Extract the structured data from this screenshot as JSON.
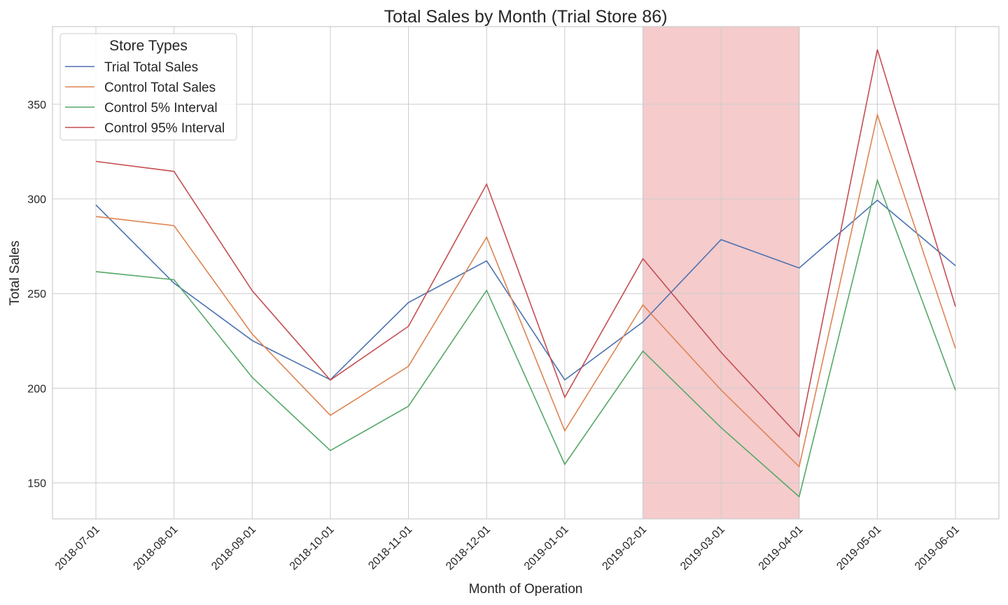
{
  "chart_data": {
    "type": "line",
    "title": "Total Sales by Month (Trial Store 86)",
    "xlabel": "Month of Operation",
    "ylabel": "Total Sales",
    "categories": [
      "2018-07-01",
      "2018-08-01",
      "2018-09-01",
      "2018-10-01",
      "2018-11-01",
      "2018-12-01",
      "2019-01-01",
      "2019-02-01",
      "2019-03-01",
      "2019-04-01",
      "2019-05-01",
      "2019-06-01"
    ],
    "ylim": [
      131,
      391
    ],
    "yticks": [
      150,
      200,
      250,
      300,
      350
    ],
    "grid": true,
    "legend": {
      "title": "Store Types",
      "placement": "top-left"
    },
    "highlight": {
      "from": "2019-02-01",
      "to": "2019-04-01",
      "color": "#f4c5c6"
    },
    "series": [
      {
        "name": "Trial Total Sales",
        "color": "#4c72b0",
        "values": [
          296.8,
          255.5,
          225.2,
          204.5,
          245.3,
          267.3,
          204.4,
          235.0,
          278.5,
          263.5,
          299.3,
          264.7
        ]
      },
      {
        "name": "Control Total Sales",
        "color": "#dd8452",
        "values": [
          290.7,
          285.9,
          228.6,
          185.7,
          211.6,
          279.8,
          177.5,
          244.0,
          199.1,
          158.6,
          344.4,
          221.0
        ]
      },
      {
        "name": "Control 5% Interval",
        "color": "#55a868",
        "values": [
          261.6,
          257.3,
          205.7,
          167.1,
          190.5,
          251.7,
          159.8,
          219.6,
          179.2,
          142.7,
          309.9,
          198.9
        ]
      },
      {
        "name": "Control 95% Interval",
        "color": "#c44e52",
        "values": [
          319.8,
          314.5,
          251.5,
          204.3,
          232.7,
          307.8,
          195.2,
          268.4,
          219.0,
          174.5,
          378.9,
          243.1
        ]
      }
    ]
  }
}
